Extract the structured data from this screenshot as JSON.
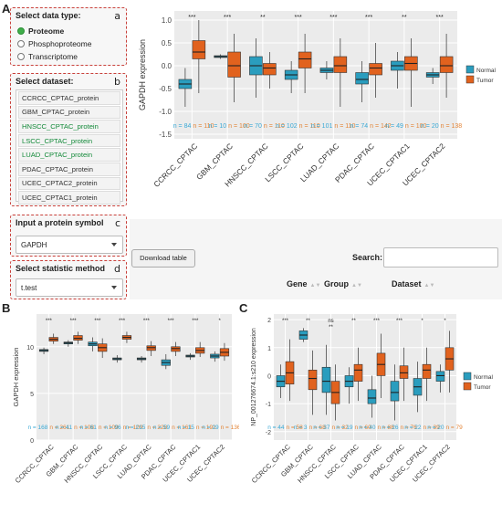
{
  "panels": {
    "a": "A",
    "b": "B",
    "c": "C"
  },
  "sidebar": {
    "data_type": {
      "title": "Select data type:",
      "letter": "a",
      "options": [
        {
          "label": "Proteome",
          "selected": true
        },
        {
          "label": "Phosphoproteome",
          "selected": false
        },
        {
          "label": "Transcriptome",
          "selected": false
        }
      ]
    },
    "dataset": {
      "title": "Select dataset:",
      "letter": "b",
      "items": [
        {
          "label": "CCRCC_CPTAC_protein",
          "highlight": false
        },
        {
          "label": "GBM_CPTAC_protein",
          "highlight": false
        },
        {
          "label": "HNSCC_CPTAC_protein",
          "highlight": true
        },
        {
          "label": "LSCC_CPTAC_protein",
          "highlight": true
        },
        {
          "label": "LUAD_CPTAC_protein",
          "highlight": true
        },
        {
          "label": "PDAC_CPTAC_protein",
          "highlight": false
        },
        {
          "label": "UCEC_CPTAC2_protein",
          "highlight": false
        },
        {
          "label": "UCEC_CPTAC1_protein",
          "highlight": false
        }
      ]
    },
    "protein": {
      "title": "Input a protein symbol",
      "letter": "c",
      "value": "GAPDH"
    },
    "method": {
      "title": "Select statistic method",
      "letter": "d",
      "value": "t.test"
    }
  },
  "table": {
    "download_label": "Download table",
    "search_label": "Search:",
    "columns": [
      "Gene",
      "Group",
      "Dataset"
    ]
  },
  "colors": {
    "normal": "#2a9dbe",
    "tumor": "#e1621e",
    "n_normal": "#39a9d6",
    "n_tumor": "#e38436"
  },
  "chart_data": [
    {
      "type": "box",
      "panel": "A",
      "ylabel": "GAPDH expression",
      "ylim": [
        -1.6,
        1.2
      ],
      "yticks": [
        "1.0",
        "0.5",
        "0.0",
        "-0.5",
        "-1.0",
        "-1.5"
      ],
      "categories": [
        "CCRCC_CPTAC",
        "GBM_CPTAC",
        "HNSCC_CPTAC",
        "LSCC_CPTAC",
        "LUAD_CPTAC",
        "PDAC_CPTAC",
        "UCEC_CPTAC1",
        "UCEC_CPTAC2"
      ],
      "significance": [
        "***",
        "***",
        "**",
        "***",
        "***",
        "***",
        "**",
        "***"
      ],
      "legend": [
        "Normal",
        "Tumor"
      ],
      "n_normal": [
        "n = 84",
        "n = 10",
        "n = 70",
        "n = 102",
        "n = 101",
        "n = 74",
        "n = 49",
        "n = 20"
      ],
      "n_tumor": [
        "n = 110",
        "n = 100",
        "n = 110",
        "n = 110",
        "n = 110",
        "n = 142",
        "n = 100",
        "n = 138"
      ],
      "series": [
        {
          "name": "Normal",
          "boxes": [
            [
              -0.9,
              -0.5,
              -0.4,
              -0.3,
              -0.05
            ],
            [
              0.15,
              0.18,
              0.2,
              0.22,
              0.25
            ],
            [
              -0.7,
              -0.2,
              0.0,
              0.2,
              0.6
            ],
            [
              -0.6,
              -0.3,
              -0.2,
              -0.1,
              0.1
            ],
            [
              -0.3,
              -0.15,
              -0.1,
              -0.05,
              0.1
            ],
            [
              -0.8,
              -0.4,
              -0.3,
              -0.15,
              0.1
            ],
            [
              -0.5,
              -0.1,
              0.0,
              0.1,
              0.3
            ],
            [
              -0.4,
              -0.25,
              -0.2,
              -0.15,
              -0.05
            ]
          ]
        },
        {
          "name": "Tumor",
          "boxes": [
            [
              -0.6,
              0.15,
              0.3,
              0.55,
              1.0
            ],
            [
              -0.8,
              -0.25,
              0.0,
              0.3,
              0.7
            ],
            [
              -0.5,
              -0.2,
              -0.05,
              0.05,
              0.3
            ],
            [
              -0.6,
              -0.05,
              0.15,
              0.3,
              0.7
            ],
            [
              -0.9,
              -0.15,
              0.0,
              0.2,
              0.6
            ],
            [
              -0.7,
              -0.2,
              -0.05,
              0.05,
              0.5
            ],
            [
              -0.9,
              -0.1,
              0.05,
              0.2,
              0.6
            ],
            [
              -0.7,
              -0.15,
              0.0,
              0.2,
              0.7
            ]
          ]
        }
      ]
    },
    {
      "type": "box",
      "panel": "B",
      "ylabel": "GAPDH expression",
      "ylim": [
        0,
        13.5
      ],
      "yticks": [
        "10",
        "5",
        "0"
      ],
      "categories": [
        "CCRCC_CPTAC",
        "GBM_CPTAC",
        "HNSCC_CPTAC",
        "LSCC_CPTAC",
        "LUAD_CPTAC",
        "PDAC_CPTAC",
        "UCEC_CPTAC1",
        "UCEC_CPTAC2"
      ],
      "significance": [
        "***",
        "***",
        "***",
        "***",
        "***",
        "***",
        "***",
        "*"
      ],
      "n_normal": [
        "n = 168",
        "n = 41",
        "n = 61",
        "n = 96",
        "n = 215",
        "n = 59",
        "n = 15",
        "n = 29"
      ],
      "n_tumor": [
        "n = 261",
        "n = 108",
        "n = 109",
        "n = 109",
        "n = 228",
        "n = 161",
        "n = 191",
        "n = 136"
      ],
      "series": [
        {
          "name": "Normal",
          "boxes": [
            [
              9.2,
              9.5,
              9.6,
              9.7,
              9.9
            ],
            [
              10.0,
              10.3,
              10.4,
              10.5,
              10.7
            ],
            [
              9.5,
              10.1,
              10.3,
              10.5,
              11.0
            ],
            [
              8.3,
              8.6,
              8.7,
              8.8,
              9.1
            ],
            [
              8.3,
              8.6,
              8.7,
              8.8,
              9.0
            ],
            [
              7.6,
              8.0,
              8.3,
              8.6,
              9.2
            ],
            [
              8.6,
              8.9,
              9.0,
              9.1,
              9.3
            ],
            [
              8.4,
              8.8,
              9.0,
              9.2,
              9.5
            ]
          ]
        },
        {
          "name": "Tumor",
          "boxes": [
            [
              10.3,
              10.6,
              10.8,
              11.0,
              11.4
            ],
            [
              10.3,
              10.7,
              10.9,
              11.2,
              11.6
            ],
            [
              8.8,
              9.5,
              9.9,
              10.3,
              10.9
            ],
            [
              10.4,
              10.8,
              11.0,
              11.2,
              11.6
            ],
            [
              9.0,
              9.6,
              9.9,
              10.1,
              10.6
            ],
            [
              9.0,
              9.5,
              9.8,
              10.0,
              10.5
            ],
            [
              8.9,
              9.3,
              9.6,
              9.9,
              10.5
            ],
            [
              8.5,
              9.0,
              9.4,
              9.8,
              10.4
            ]
          ]
        }
      ]
    },
    {
      "type": "box",
      "panel": "C",
      "ylabel": "NP_001276674.1:s210 expression",
      "ylim": [
        -2.3,
        2.2
      ],
      "yticks": [
        "2",
        "1",
        "0",
        "-1",
        "-2"
      ],
      "categories": [
        "CCRCC_CPTAC",
        "GBM_CPTAC",
        "HNSCC_CPTAC",
        "LSCC_CPTAC",
        "LUAD_CPTAC",
        "PDAC_CPTAC",
        "UCEC_CPTAC1",
        "UCEC_CPTAC2"
      ],
      "significance": [
        "***",
        "**",
        "ns",
        "**",
        "***",
        "***",
        "*",
        "*"
      ],
      "significance2": [
        "",
        "",
        "**",
        "",
        "",
        "",
        "",
        ""
      ],
      "legend": [
        "Normal",
        "Tumor"
      ],
      "n_normal": [
        "n = 44",
        "n = 3",
        "n = 37",
        "n = 19",
        "n = 40",
        "n = 26",
        "n = 22",
        "n = 20"
      ],
      "n_tumor": [
        "n = 58",
        "n = 68",
        "n = 32",
        "n = 60",
        "n = 88",
        "n = 76",
        "n = 39",
        "n = 79"
      ],
      "series": [
        {
          "name": "Normal",
          "boxes": [
            [
              -0.8,
              -0.4,
              -0.2,
              0.0,
              0.4
            ],
            [
              1.2,
              1.3,
              1.45,
              1.6,
              1.7
            ],
            [
              -1.4,
              -0.6,
              -0.2,
              0.3,
              1.1
            ],
            [
              -1.0,
              -0.4,
              -0.2,
              0.0,
              0.3
            ],
            [
              -1.5,
              -1.0,
              -0.8,
              -0.5,
              0.0
            ],
            [
              -1.6,
              -0.9,
              -0.6,
              -0.2,
              0.4
            ],
            [
              -1.3,
              -0.7,
              -0.4,
              -0.1,
              0.5
            ],
            [
              -0.6,
              -0.2,
              0.0,
              0.15,
              0.4
            ]
          ]
        },
        {
          "name": "Tumor",
          "boxes": [
            [
              -0.9,
              -0.3,
              0.1,
              0.5,
              1.3
            ],
            [
              -1.4,
              -0.5,
              -0.1,
              0.2,
              0.9
            ],
            [
              -1.6,
              -1.0,
              -0.6,
              -0.2,
              0.4
            ],
            [
              -0.9,
              -0.2,
              0.2,
              0.4,
              1.0
            ],
            [
              -0.8,
              0.0,
              0.4,
              0.8,
              1.5
            ],
            [
              -0.9,
              -0.1,
              0.1,
              0.35,
              1.0
            ],
            [
              -0.9,
              -0.1,
              0.2,
              0.4,
              1.0
            ],
            [
              -0.6,
              0.2,
              0.6,
              1.0,
              1.6
            ]
          ]
        }
      ]
    }
  ]
}
